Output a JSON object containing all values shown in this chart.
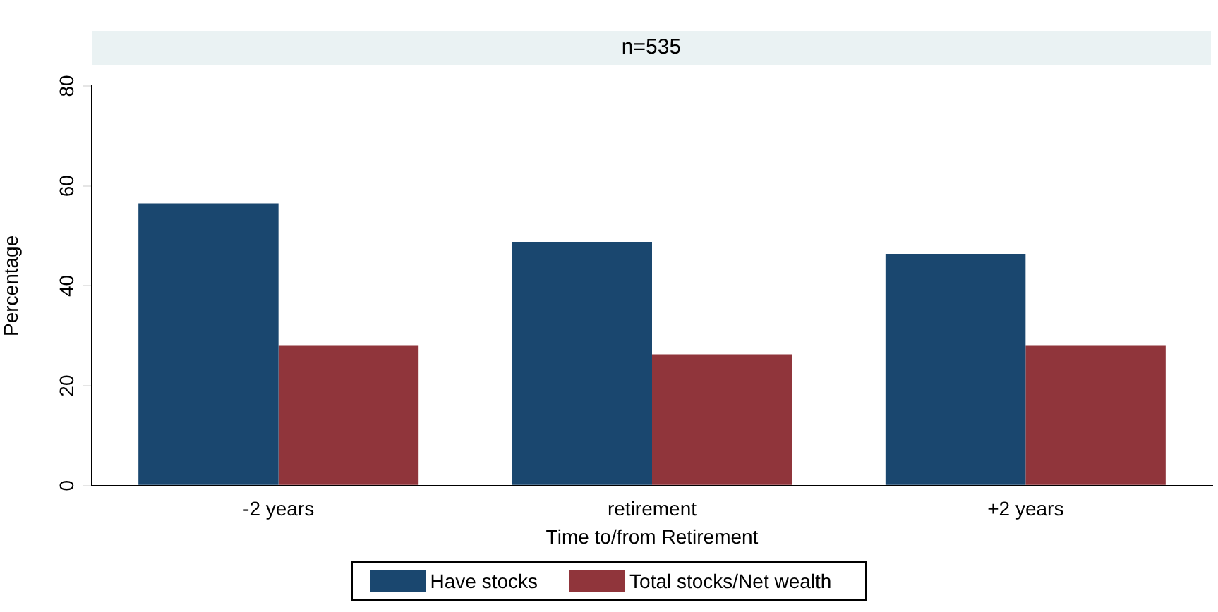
{
  "chart_data": {
    "type": "bar",
    "title": "n=535",
    "xlabel": "Time to/from Retirement",
    "ylabel": "Percentage",
    "categories": [
      "-2 years",
      "retirement",
      "+2 years"
    ],
    "series": [
      {
        "name": "Have stocks",
        "color": "#1a476f",
        "values": [
          56.5,
          48.8,
          46.4
        ]
      },
      {
        "name": "Total stocks/Net wealth",
        "color": "#90353b",
        "values": [
          28.0,
          26.3,
          28.0
        ]
      }
    ],
    "ylim": [
      0,
      80
    ],
    "yticks": [
      0,
      20,
      40,
      60,
      80
    ],
    "grid": false,
    "legend": "bottom"
  }
}
